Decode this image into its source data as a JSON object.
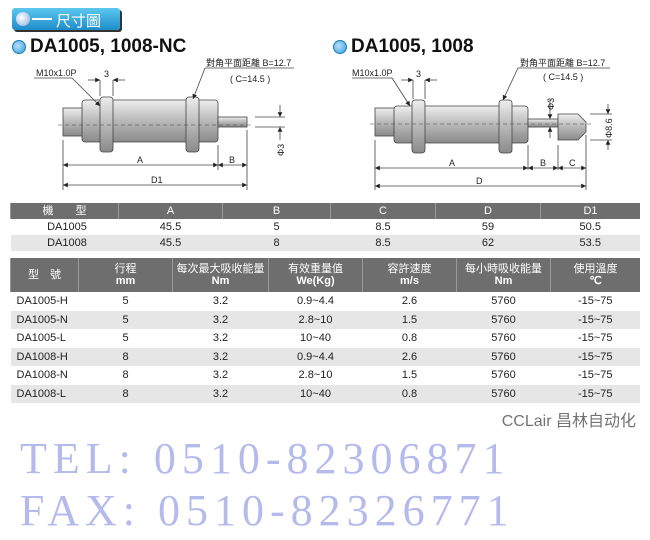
{
  "header": {
    "badge": "尺寸圖"
  },
  "drawing_left": {
    "title": "DA1005, 1008-NC",
    "thread": "M10x1.0P",
    "nut_width": "3",
    "flat_label": "對角平面距離 B=12.7",
    "flat_c": "( C=14.5 )",
    "rod_dia": "Φ3",
    "dim_a": "A",
    "dim_b": "B",
    "dim_d1": "D1"
  },
  "drawing_right": {
    "title": "DA1005, 1008",
    "thread": "M10x1.0P",
    "nut_width": "3",
    "flat_label": "對角平面距離 B=12.7",
    "flat_c": "( C=14.5 )",
    "rod_dia": "Φ3",
    "cap_dia": "Φ8.6",
    "dim_a": "A",
    "dim_b": "B",
    "dim_c": "C",
    "dim_d": "D"
  },
  "dim_table": {
    "headers": [
      "機　　型",
      "A",
      "B",
      "C",
      "D",
      "D1"
    ],
    "rows": [
      [
        "DA1005",
        "45.5",
        "5",
        "8.5",
        "59",
        "50.5"
      ],
      [
        "DA1008",
        "45.5",
        "8",
        "8.5",
        "62",
        "53.5"
      ]
    ]
  },
  "spec_table": {
    "headers": [
      [
        "型　號",
        ""
      ],
      [
        "行程",
        "mm"
      ],
      [
        "每次最大吸收能量",
        "Nm"
      ],
      [
        "有效重量值",
        "We(Kg)"
      ],
      [
        "容許速度",
        "m/s"
      ],
      [
        "每小時吸收能量",
        "Nm"
      ],
      [
        "使用溫度",
        "℃"
      ]
    ],
    "rows": [
      [
        "DA1005-H",
        "5",
        "3.2",
        "0.9~4.4",
        "2.6",
        "5760",
        "-15~75"
      ],
      [
        "DA1005-N",
        "5",
        "3.2",
        "2.8~10",
        "1.5",
        "5760",
        "-15~75"
      ],
      [
        "DA1005-L",
        "5",
        "3.2",
        "10~40",
        "0.8",
        "5760",
        "-15~75"
      ],
      [
        "DA1008-H",
        "8",
        "3.2",
        "0.9~4.4",
        "2.6",
        "5760",
        "-15~75"
      ],
      [
        "DA1008-N",
        "8",
        "3.2",
        "2.8~10",
        "1.5",
        "5760",
        "-15~75"
      ],
      [
        "DA1008-L",
        "8",
        "3.2",
        "10~40",
        "0.8",
        "5760",
        "-15~75"
      ]
    ]
  },
  "watermarks": {
    "tel": "TEL: 0510-82306871",
    "fax": "FAX: 0510-82326771",
    "brand": "CCLair 昌林自动化"
  }
}
